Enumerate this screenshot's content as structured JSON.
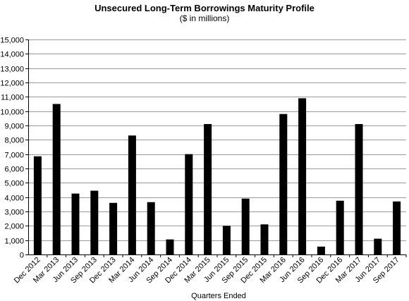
{
  "chart_data": {
    "type": "bar",
    "title": "Unsecured Long-Term Borrowings Maturity Profile",
    "subtitle": "($ in millions)",
    "xlabel": "Quarters Ended",
    "ylabel": "",
    "ylim": [
      0,
      15000
    ],
    "yticks": [
      "0",
      "1,000",
      "2,000",
      "3,000",
      "4,000",
      "5,000",
      "6,000",
      "7,000",
      "8,000",
      "9,000",
      "10,000",
      "11,000",
      "12,000",
      "13,000",
      "14,000",
      "15,000"
    ],
    "categories": [
      "Dec 2012",
      "Mar 2013",
      "Jun 2013",
      "Sep 2013",
      "Dec 2013",
      "Mar 2014",
      "Jun 2014",
      "Sep 2014",
      "Dec 2014",
      "Mar 2015",
      "Jun 2015",
      "Sep 2015",
      "Dec 2015",
      "Mar 2016",
      "Jun 2016",
      "Sep 2016",
      "Dec 2016",
      "Mar 2017",
      "Jun 2017",
      "Sep 2017"
    ],
    "values": [
      6850,
      10500,
      4250,
      4450,
      3600,
      8300,
      3650,
      1050,
      7000,
      9100,
      2000,
      3900,
      2100,
      9800,
      10900,
      550,
      3750,
      9100,
      1100,
      3700
    ],
    "grid": true,
    "legend": "none",
    "bar_color": "#000000"
  }
}
